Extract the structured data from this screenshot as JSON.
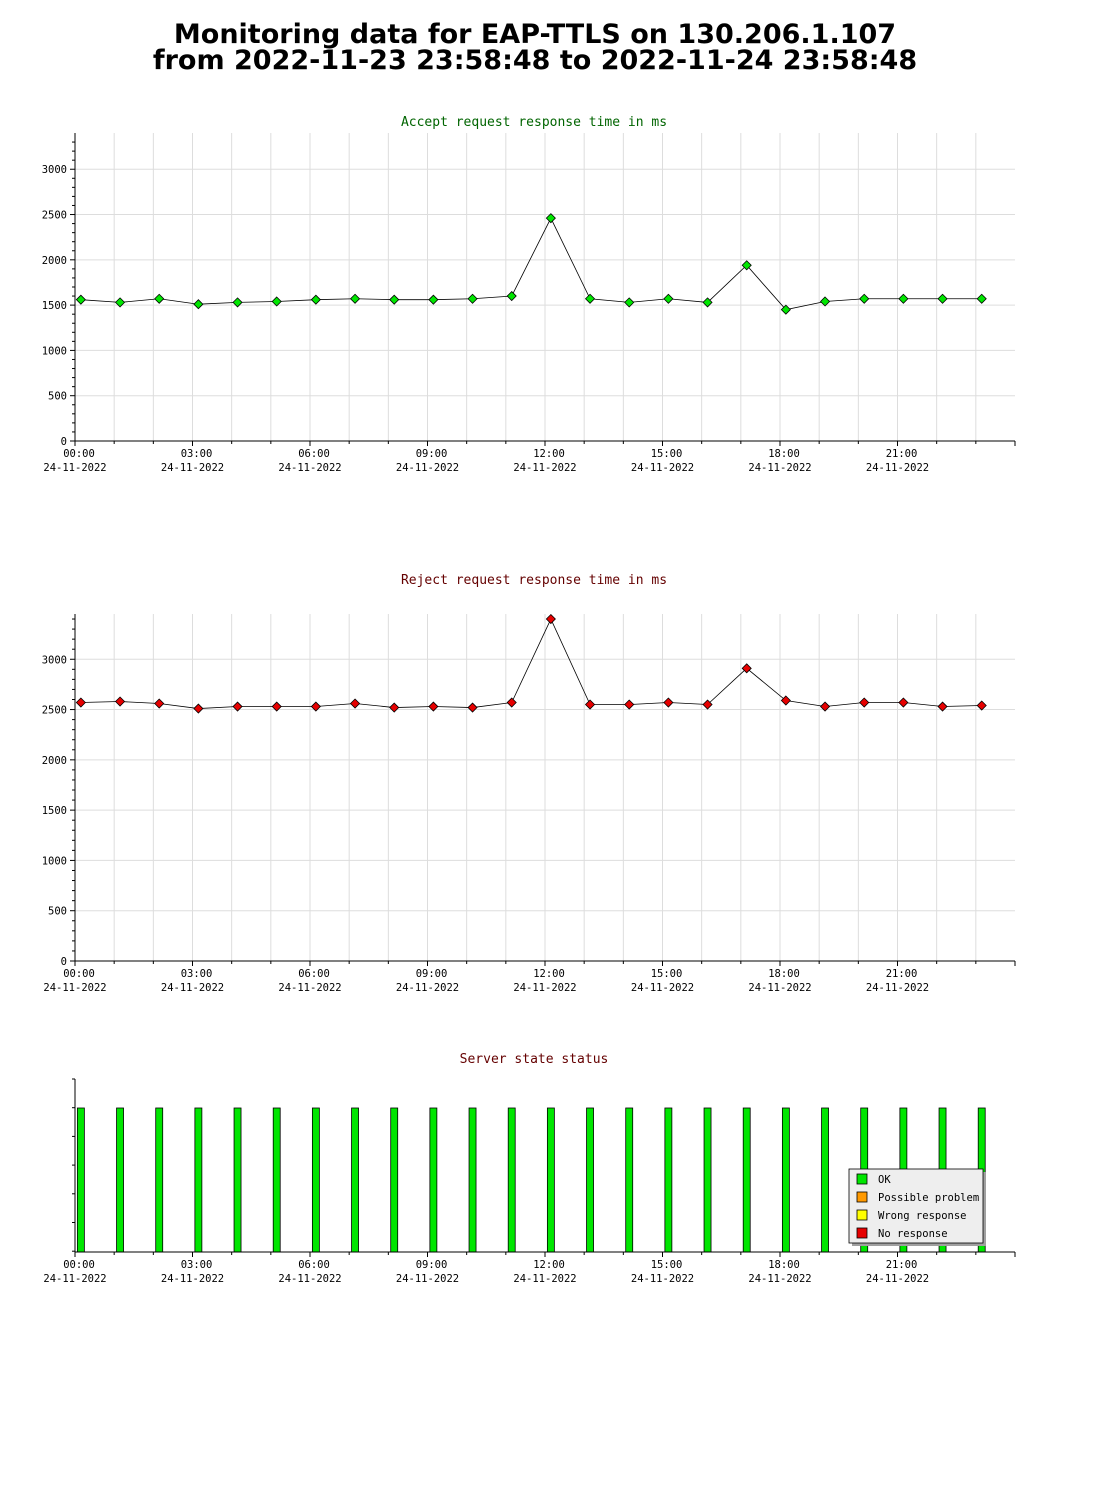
{
  "page": {
    "title_line1": "Monitoring data for EAP-TTLS on 130.206.1.107",
    "title_line2": "from 2022-11-23 23:58:48 to 2022-11-24 23:58:48"
  },
  "colors": {
    "accept_title": "#006400",
    "reject_title": "#640000",
    "status_title": "#640000",
    "accept_marker": "#00e600",
    "reject_marker": "#e60000",
    "ok": "#00e600",
    "possible_problem": "#ff9900",
    "wrong_response": "#ffff00",
    "no_response": "#e60000",
    "grid": "#dddddd"
  },
  "chart_data": [
    {
      "type": "line",
      "title": "Accept request response time in ms",
      "x_tick_labels": [
        {
          "time": "00:00",
          "date": "24-11-2022"
        },
        {
          "time": "03:00",
          "date": "24-11-2022"
        },
        {
          "time": "06:00",
          "date": "24-11-2022"
        },
        {
          "time": "09:00",
          "date": "24-11-2022"
        },
        {
          "time": "12:00",
          "date": "24-11-2022"
        },
        {
          "time": "15:00",
          "date": "24-11-2022"
        },
        {
          "time": "18:00",
          "date": "24-11-2022"
        },
        {
          "time": "21:00",
          "date": "24-11-2022"
        }
      ],
      "y_ticks": [
        0,
        500,
        1000,
        1500,
        2000,
        2500,
        3000
      ],
      "ylim": [
        0,
        3400
      ],
      "grid": true,
      "x": [
        "00:09",
        "01:09",
        "02:09",
        "03:09",
        "04:09",
        "05:09",
        "06:09",
        "07:09",
        "08:09",
        "09:09",
        "10:09",
        "11:09",
        "12:09",
        "13:09",
        "14:09",
        "15:09",
        "16:09",
        "17:09",
        "18:09",
        "19:09",
        "20:09",
        "21:09",
        "22:09",
        "23:09"
      ],
      "values": [
        1560,
        1530,
        1570,
        1510,
        1530,
        1540,
        1560,
        1570,
        1560,
        1560,
        1570,
        1600,
        2460,
        1570,
        1530,
        1570,
        1530,
        1940,
        1450,
        1540,
        1570,
        1570,
        1570,
        1570
      ]
    },
    {
      "type": "line",
      "title": "Reject request response time in ms",
      "x_tick_labels": [
        {
          "time": "00:00",
          "date": "24-11-2022"
        },
        {
          "time": "03:00",
          "date": "24-11-2022"
        },
        {
          "time": "06:00",
          "date": "24-11-2022"
        },
        {
          "time": "09:00",
          "date": "24-11-2022"
        },
        {
          "time": "12:00",
          "date": "24-11-2022"
        },
        {
          "time": "15:00",
          "date": "24-11-2022"
        },
        {
          "time": "18:00",
          "date": "24-11-2022"
        },
        {
          "time": "21:00",
          "date": "24-11-2022"
        }
      ],
      "y_ticks": [
        0,
        500,
        1000,
        1500,
        2000,
        2500,
        3000
      ],
      "ylim": [
        0,
        3450
      ],
      "grid": true,
      "x": [
        "00:09",
        "01:09",
        "02:09",
        "03:09",
        "04:09",
        "05:09",
        "06:09",
        "07:09",
        "08:09",
        "09:09",
        "10:09",
        "11:09",
        "12:09",
        "13:09",
        "14:09",
        "15:09",
        "16:09",
        "17:09",
        "18:09",
        "19:09",
        "20:09",
        "21:09",
        "22:09",
        "23:09"
      ],
      "values": [
        2570,
        2580,
        2560,
        2510,
        2530,
        2530,
        2530,
        2560,
        2520,
        2530,
        2520,
        2570,
        3400,
        2550,
        2550,
        2570,
        2550,
        2910,
        2590,
        2530,
        2570,
        2570,
        2530,
        2540
      ]
    },
    {
      "type": "bar",
      "title": "Server state status",
      "x_tick_labels": [
        {
          "time": "00:00",
          "date": "24-11-2022"
        },
        {
          "time": "03:00",
          "date": "24-11-2022"
        },
        {
          "time": "06:00",
          "date": "24-11-2022"
        },
        {
          "time": "09:00",
          "date": "24-11-2022"
        },
        {
          "time": "12:00",
          "date": "24-11-2022"
        },
        {
          "time": "15:00",
          "date": "24-11-2022"
        },
        {
          "time": "18:00",
          "date": "24-11-2022"
        },
        {
          "time": "21:00",
          "date": "24-11-2022"
        }
      ],
      "x": [
        "00:09",
        "01:09",
        "02:09",
        "03:09",
        "04:09",
        "05:09",
        "06:09",
        "07:09",
        "08:09",
        "09:09",
        "10:09",
        "11:09",
        "12:09",
        "13:09",
        "14:09",
        "15:09",
        "16:09",
        "17:09",
        "18:09",
        "19:09",
        "20:09",
        "21:09",
        "22:09",
        "23:09"
      ],
      "states": [
        "OK",
        "OK",
        "OK",
        "OK",
        "OK",
        "OK",
        "OK",
        "OK",
        "OK",
        "OK",
        "OK",
        "OK",
        "OK",
        "OK",
        "OK",
        "OK",
        "OK",
        "OK",
        "OK",
        "OK",
        "OK",
        "OK",
        "OK",
        "OK"
      ],
      "legend": [
        "OK",
        "Possible problem",
        "Wrong response",
        "No response"
      ],
      "legend_position": "bottom-right"
    }
  ]
}
